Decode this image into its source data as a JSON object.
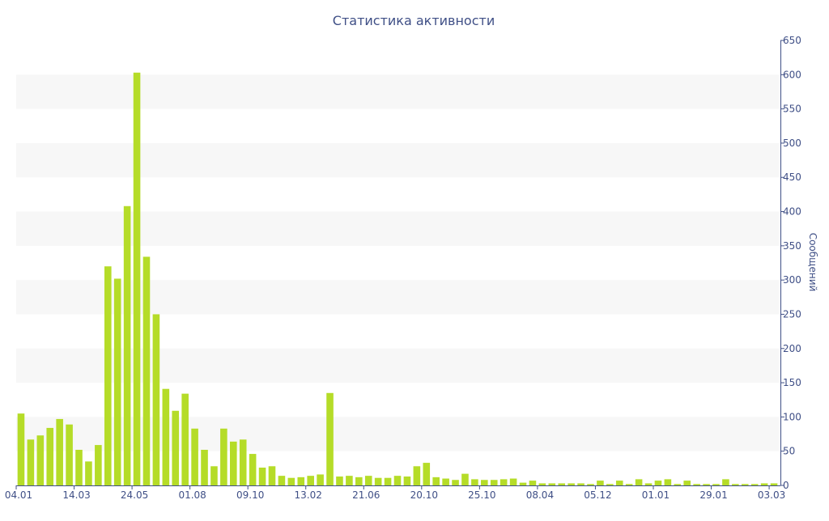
{
  "chart_data": {
    "type": "bar",
    "title": "Статистика активности",
    "ylabel": "Сообщений",
    "xlabel": "",
    "ylim": [
      0,
      650
    ],
    "y_ticks": [
      0,
      50,
      100,
      150,
      200,
      250,
      300,
      350,
      400,
      450,
      500,
      550,
      600,
      650
    ],
    "x_tick_labels": [
      "04.01",
      "14.03",
      "24.05",
      "01.08",
      "09.10",
      "13.02",
      "21.06",
      "20.10",
      "25.10",
      "08.04",
      "05.12",
      "01.01",
      "29.01",
      "03.03"
    ],
    "x_tick_bar_index": [
      0,
      6,
      12,
      18,
      24,
      30,
      36,
      42,
      48,
      54,
      60,
      66,
      72,
      78
    ],
    "values": [
      105,
      67,
      73,
      84,
      97,
      89,
      52,
      35,
      59,
      320,
      302,
      408,
      603,
      334,
      250,
      141,
      109,
      134,
      83,
      52,
      28,
      83,
      64,
      67,
      46,
      26,
      28,
      14,
      11,
      12,
      14,
      16,
      135,
      13,
      14,
      12,
      14,
      11,
      11,
      14,
      13,
      28,
      33,
      12,
      10,
      8,
      17,
      9,
      8,
      8,
      9,
      10,
      4,
      7,
      3,
      3,
      3,
      3,
      3,
      2,
      7,
      2,
      7,
      2,
      9,
      3,
      7,
      9,
      2,
      7,
      2,
      2,
      2,
      9,
      2,
      2,
      2,
      3,
      3
    ],
    "bar_color": "#b5dc28",
    "band_color": "#f7f7f7",
    "axis_color": "#3f4f86",
    "grid": "alternating bands",
    "y_axis_position": "right"
  }
}
